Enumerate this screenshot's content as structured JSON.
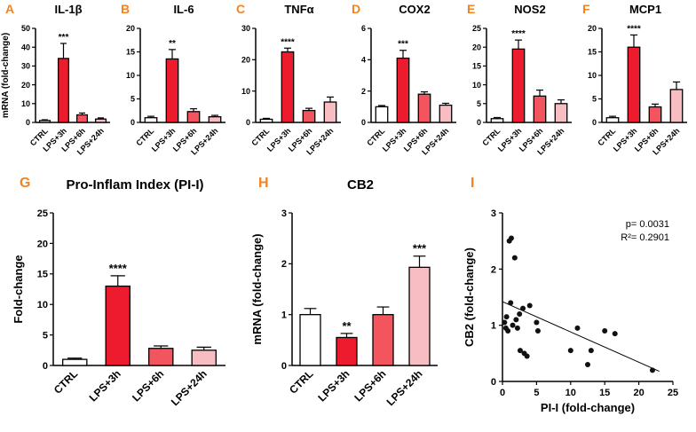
{
  "colors": {
    "panel_letter": "#F58220",
    "axis": "#000000",
    "bar_stroke": "#000000",
    "scatter_point": "#111111",
    "bar_fill_by_group": [
      "#FFFFFF",
      "#EC1C2E",
      "#F2555E",
      "#F8BDC2"
    ]
  },
  "chart_data": [
    {
      "panel_letter": "A",
      "title": "IL-1β",
      "type": "bar",
      "ylabel": "mRNA (fold-change)",
      "ylim": [
        0,
        50
      ],
      "yticks": [
        0,
        10,
        20,
        30,
        40,
        50
      ],
      "categories": [
        "CTRL",
        "LPS+3h",
        "LPS+6h",
        "LPS+24h"
      ],
      "values": [
        1,
        34,
        4,
        1.8
      ],
      "errors": [
        0.4,
        8,
        1,
        0.6
      ],
      "sig": [
        "",
        "***",
        "",
        ""
      ]
    },
    {
      "panel_letter": "B",
      "title": "IL-6",
      "type": "bar",
      "ylabel": "",
      "ylim": [
        0,
        20
      ],
      "yticks": [
        0,
        5,
        10,
        15,
        20
      ],
      "categories": [
        "CTRL",
        "LPS+3h",
        "LPS+6h",
        "LPS+24h"
      ],
      "values": [
        1,
        13.5,
        2.3,
        1.2
      ],
      "errors": [
        0.3,
        2,
        0.6,
        0.3
      ],
      "sig": [
        "",
        "**",
        "",
        ""
      ]
    },
    {
      "panel_letter": "C",
      "title": "TNFα",
      "type": "bar",
      "ylabel": "",
      "ylim": [
        0,
        30
      ],
      "yticks": [
        0,
        10,
        20,
        30
      ],
      "categories": [
        "CTRL",
        "LPS+3h",
        "LPS+6h",
        "LPS+24h"
      ],
      "values": [
        1,
        22.5,
        3.8,
        6.5
      ],
      "errors": [
        0.3,
        1.2,
        0.7,
        1.6
      ],
      "sig": [
        "",
        "****",
        "",
        ""
      ]
    },
    {
      "panel_letter": "D",
      "title": "COX2",
      "type": "bar",
      "ylabel": "",
      "ylim": [
        0,
        6
      ],
      "yticks": [
        0,
        2,
        4,
        6
      ],
      "categories": [
        "CTRL",
        "LPS+3h",
        "LPS+6h",
        "LPS+24h"
      ],
      "values": [
        1,
        4.1,
        1.8,
        1.1
      ],
      "errors": [
        0.08,
        0.5,
        0.15,
        0.12
      ],
      "sig": [
        "",
        "***",
        "",
        ""
      ]
    },
    {
      "panel_letter": "E",
      "title": "NOS2",
      "type": "bar",
      "ylabel": "",
      "ylim": [
        0,
        25
      ],
      "yticks": [
        0,
        5,
        10,
        15,
        20,
        25
      ],
      "categories": [
        "CTRL",
        "LPS+3h",
        "LPS+6h",
        "LPS+24h"
      ],
      "values": [
        1,
        19.5,
        7,
        5
      ],
      "errors": [
        0.3,
        2.4,
        1.6,
        1
      ],
      "sig": [
        "",
        "****",
        "",
        ""
      ]
    },
    {
      "panel_letter": "F",
      "title": "MCP1",
      "type": "bar",
      "ylabel": "",
      "ylim": [
        0,
        20
      ],
      "yticks": [
        0,
        5,
        10,
        15,
        20
      ],
      "categories": [
        "CTRL",
        "LPS+3h",
        "LPS+6h",
        "LPS+24h"
      ],
      "values": [
        1,
        16,
        3.3,
        7
      ],
      "errors": [
        0.3,
        2.6,
        0.6,
        1.6
      ],
      "sig": [
        "",
        "****",
        "",
        ""
      ]
    },
    {
      "panel_letter": "G",
      "title": "Pro-Inflam Index (PI-I)",
      "type": "bar",
      "ylabel": "Fold-change",
      "ylim": [
        0,
        25
      ],
      "yticks": [
        0,
        5,
        10,
        15,
        20,
        25
      ],
      "categories": [
        "CTRL",
        "LPS+3h",
        "LPS+6h",
        "LPS+24h"
      ],
      "values": [
        1,
        13,
        2.8,
        2.5
      ],
      "errors": [
        0.2,
        1.7,
        0.4,
        0.5
      ],
      "sig": [
        "",
        "****",
        "",
        ""
      ]
    },
    {
      "panel_letter": "H",
      "title": "CB2",
      "type": "bar",
      "ylabel": "mRNA (fold-change)",
      "ylim": [
        0,
        3
      ],
      "yticks": [
        0,
        1,
        2,
        3
      ],
      "categories": [
        "CTRL",
        "LPS+3h",
        "LPS+6h",
        "LPS+24h"
      ],
      "values": [
        1,
        0.55,
        1,
        1.93
      ],
      "errors": [
        0.12,
        0.08,
        0.15,
        0.22
      ],
      "sig": [
        "",
        "**",
        "",
        "***"
      ]
    },
    {
      "panel_letter": "I",
      "title": "",
      "type": "scatter",
      "xlabel": "PI-I (fold-change)",
      "ylabel": "CB2 (fold-change)",
      "xlim": [
        0,
        25
      ],
      "xticks": [
        0,
        5,
        10,
        15,
        20,
        25
      ],
      "ylim": [
        0,
        3
      ],
      "yticks": [
        0,
        1,
        2,
        3
      ],
      "annotation": [
        "p= 0.0031",
        "R²= 0.2901"
      ],
      "points": [
        [
          0.3,
          1.05
        ],
        [
          0.5,
          0.95
        ],
        [
          0.6,
          1.15
        ],
        [
          0.8,
          0.9
        ],
        [
          1,
          2.5
        ],
        [
          1.3,
          2.55
        ],
        [
          1.2,
          1.4
        ],
        [
          1.5,
          1.0
        ],
        [
          1.8,
          2.2
        ],
        [
          2,
          1.1
        ],
        [
          2.2,
          0.95
        ],
        [
          2.5,
          1.2
        ],
        [
          2.6,
          0.55
        ],
        [
          3,
          1.3
        ],
        [
          3.2,
          0.5
        ],
        [
          3.6,
          0.45
        ],
        [
          4,
          1.35
        ],
        [
          5,
          1.05
        ],
        [
          5.2,
          0.9
        ],
        [
          10,
          0.55
        ],
        [
          11,
          0.95
        ],
        [
          12.5,
          0.3
        ],
        [
          13,
          0.55
        ],
        [
          15,
          0.9
        ],
        [
          16.5,
          0.85
        ],
        [
          22,
          0.2
        ]
      ],
      "regression_line": {
        "x": [
          0,
          23
        ],
        "y": [
          1.42,
          0.18
        ]
      }
    }
  ]
}
